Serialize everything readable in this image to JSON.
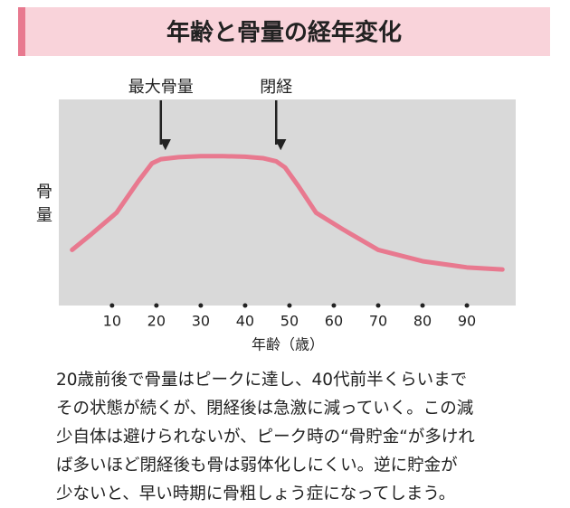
{
  "chart_data": {
    "type": "line",
    "title": "年齢と骨量の経年変化",
    "x_label": "年齢（歳）",
    "y_label": "骨量",
    "xlim": [
      -2,
      101
    ],
    "ylim": [
      0,
      100
    ],
    "xticks": [
      10,
      20,
      30,
      40,
      50,
      60,
      70,
      80,
      90
    ],
    "x": [
      1,
      5,
      11,
      16,
      19,
      21,
      25,
      30,
      35,
      40,
      44,
      47,
      49,
      52,
      56,
      62,
      70,
      80,
      90,
      98
    ],
    "series": [
      {
        "color": "#e8798f",
        "values": [
          27,
          34,
          45,
          60.5,
          69,
          71,
          72,
          72.5,
          72.5,
          72.2,
          71.5,
          70,
          67,
          58,
          45,
          37,
          27,
          21.5,
          18.5,
          17.5
        ]
      }
    ],
    "annotations": [
      {
        "text": "最大骨量",
        "x": 21
      },
      {
        "text": "閉経",
        "x": 47
      }
    ],
    "caption": [
      "20歳前後で骨量はピークに達し、40代前半くらいまで",
      "その状態が続くが、閉経後は急激に減っていく。この減",
      "少自体は避けられないが、ピーク時の“骨貯金“が多けれ",
      "ば多いほど閉経後も骨は弱体化しにくい。逆に貯金が",
      "少ないと、早い時期に骨粗しょう症になってしまう。"
    ]
  }
}
